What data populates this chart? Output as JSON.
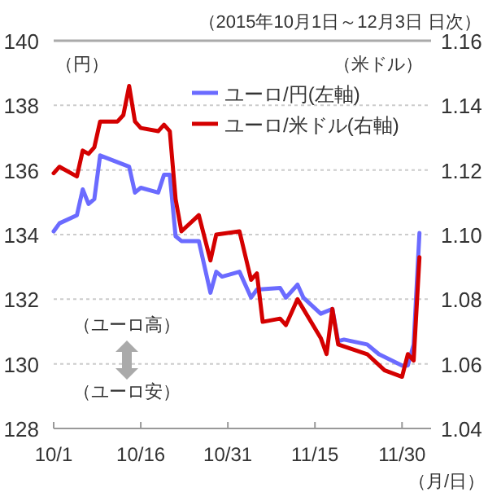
{
  "chart_data": {
    "type": "line",
    "subtitle": "（2015年10月1日～12月3日 日次）",
    "ylabel": "（円）",
    "y2label": "（米ドル）",
    "xlabel": "（月/日）",
    "annotations": [
      "（ユーロ高）",
      "（ユーロ安）"
    ],
    "xlim": [
      "2015-10-01",
      "2015-12-05"
    ],
    "xticks": [
      {
        "value": "2015-10-01",
        "label": "10/1"
      },
      {
        "value": "2015-10-16",
        "label": "10/16"
      },
      {
        "value": "2015-10-31",
        "label": "10/31"
      },
      {
        "value": "2015-11-15",
        "label": "11/15"
      },
      {
        "value": "2015-11-30",
        "label": "11/30"
      }
    ],
    "ylim": [
      128,
      140
    ],
    "yticks": [
      128,
      130,
      132,
      134,
      136,
      138,
      140
    ],
    "y2lim": [
      1.04,
      1.16
    ],
    "y2ticks": [
      1.04,
      1.06,
      1.08,
      {
        "value": 1.1,
        "label": "1.10"
      },
      1.12,
      1.14,
      1.16
    ],
    "grid": "y",
    "legend": "top right",
    "series": [
      {
        "name": "ユーロ/円(左軸)",
        "color": "#6b6bff",
        "x": [
          "2015-10-01",
          "2015-10-02",
          "2015-10-05",
          "2015-10-06",
          "2015-10-07",
          "2015-10-08",
          "2015-10-09",
          "2015-10-14",
          "2015-10-15",
          "2015-10-16",
          "2015-10-19",
          "2015-10-20",
          "2015-10-21",
          "2015-10-22",
          "2015-10-23",
          "2015-10-26",
          "2015-10-28",
          "2015-10-29",
          "2015-10-30",
          "2015-11-02",
          "2015-11-04",
          "2015-11-05",
          "2015-11-09",
          "2015-11-10",
          "2015-11-12",
          "2015-11-13",
          "2015-11-16",
          "2015-11-18",
          "2015-11-19",
          "2015-11-20",
          "2015-11-24",
          "2015-11-26",
          "2015-11-30",
          "2015-12-01",
          "2015-12-02",
          "2015-12-03"
        ],
        "values": [
          134.1,
          134.35,
          134.6,
          135.4,
          134.95,
          135.1,
          136.45,
          136.1,
          135.3,
          135.45,
          135.3,
          135.85,
          135.85,
          133.95,
          133.8,
          133.8,
          132.2,
          132.85,
          132.7,
          132.85,
          132.05,
          132.3,
          132.35,
          132.05,
          132.45,
          132.05,
          131.55,
          131.7,
          130.7,
          130.75,
          130.6,
          130.3,
          129.95,
          129.95,
          130.6,
          134.05
        ]
      },
      {
        "name": "ユーロ/米ドル(右軸)",
        "color": "#d40000",
        "axis": "y2",
        "x": [
          "2015-10-01",
          "2015-10-02",
          "2015-10-05",
          "2015-10-06",
          "2015-10-07",
          "2015-10-08",
          "2015-10-09",
          "2015-10-12",
          "2015-10-13",
          "2015-10-14",
          "2015-10-15",
          "2015-10-16",
          "2015-10-19",
          "2015-10-20",
          "2015-10-21",
          "2015-10-22",
          "2015-10-23",
          "2015-10-26",
          "2015-10-28",
          "2015-10-29",
          "2015-11-02",
          "2015-11-04",
          "2015-11-05",
          "2015-11-06",
          "2015-11-09",
          "2015-11-10",
          "2015-11-12",
          "2015-11-16",
          "2015-11-17",
          "2015-11-18",
          "2015-11-19",
          "2015-11-24",
          "2015-11-27",
          "2015-11-30",
          "2015-12-01",
          "2015-12-02",
          "2015-12-03"
        ],
        "values": [
          1.119,
          1.121,
          1.118,
          1.126,
          1.125,
          1.127,
          1.135,
          1.135,
          1.137,
          1.146,
          1.135,
          1.133,
          1.132,
          1.134,
          1.132,
          1.111,
          1.101,
          1.106,
          1.092,
          1.1,
          1.101,
          1.086,
          1.088,
          1.073,
          1.074,
          1.072,
          1.08,
          1.068,
          1.063,
          1.077,
          1.066,
          1.063,
          1.058,
          1.056,
          1.063,
          1.061,
          1.093
        ]
      }
    ]
  }
}
